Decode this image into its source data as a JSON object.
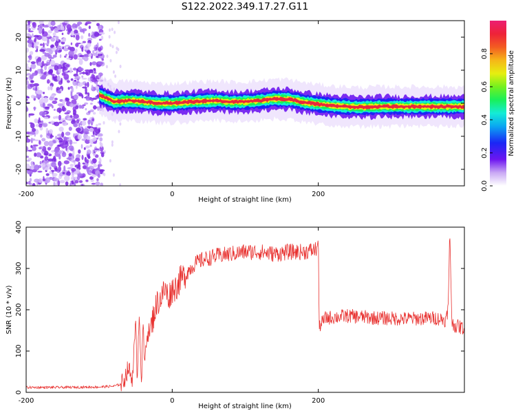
{
  "title": "S122.2022.349.17.27.G11",
  "colors": {
    "snr_line": "#e8312f",
    "ridge_center": "#e8283c",
    "noise": "#7a28e0"
  },
  "chart_data": [
    {
      "type": "heatmap",
      "title": "S122.2022.349.17.27.G11",
      "xlabel": "Height of straight line (km)",
      "ylabel": "Frequency (Hz)",
      "xlim": [
        -200,
        400
      ],
      "ylim": [
        -25,
        25
      ],
      "x_ticks": [
        -200,
        0,
        200
      ],
      "y_ticks": [
        -20,
        -10,
        0,
        10,
        20
      ],
      "colorbar": {
        "label": "Normalized spectral amplitude",
        "range": [
          0.0,
          1.0
        ],
        "ticks": [
          0.0,
          0.2,
          0.4,
          0.6,
          0.8
        ]
      },
      "noise_region_x": [
        -200,
        -95
      ],
      "ridge": {
        "x": [
          -100,
          -90,
          -80,
          -60,
          -40,
          -20,
          0,
          20,
          40,
          60,
          80,
          100,
          120,
          140,
          160,
          180,
          200,
          220,
          240,
          260,
          280,
          300,
          320,
          340,
          360,
          380,
          400
        ],
        "frequency": [
          2.5,
          1.5,
          0.5,
          0.8,
          0.5,
          0.0,
          0.0,
          0.3,
          0.6,
          0.8,
          0.4,
          0.5,
          0.8,
          1.3,
          1.2,
          0.3,
          -0.3,
          -0.8,
          -1.0,
          -1.2,
          -1.0,
          -1.0,
          -1.0,
          -1.0,
          -1.0,
          -1.0,
          -1.0
        ]
      }
    },
    {
      "type": "line",
      "xlabel": "Height of straight line (km)",
      "ylabel": "SNR (10 * v/v)",
      "xlim": [
        -200,
        400
      ],
      "ylim": [
        0,
        400
      ],
      "x_ticks": [
        -200,
        0,
        200
      ],
      "y_ticks": [
        0,
        100,
        200,
        300,
        400
      ],
      "series": [
        {
          "x": [
            -200,
            -150,
            -100,
            -80,
            -70,
            -65,
            -60,
            -55,
            -50,
            -48,
            -45,
            -42,
            -40,
            -38,
            -35,
            -30,
            -25,
            -20,
            -15,
            -10,
            -5,
            0,
            5,
            10,
            20,
            30,
            40,
            60,
            80,
            100,
            120,
            140,
            160,
            180,
            195,
            199,
            200,
            201,
            210,
            240,
            280,
            320,
            360,
            375,
            378,
            380,
            383,
            390,
            400
          ],
          "y": [
            12,
            12,
            13,
            15,
            20,
            35,
            60,
            30,
            160,
            40,
            200,
            15,
            180,
            60,
            140,
            150,
            190,
            220,
            230,
            250,
            230,
            250,
            255,
            270,
            290,
            310,
            320,
            330,
            335,
            340,
            340,
            335,
            340,
            340,
            345,
            350,
            395,
            160,
            180,
            185,
            180,
            178,
            180,
            175,
            210,
            390,
            165,
            160,
            155
          ]
        }
      ]
    }
  ]
}
